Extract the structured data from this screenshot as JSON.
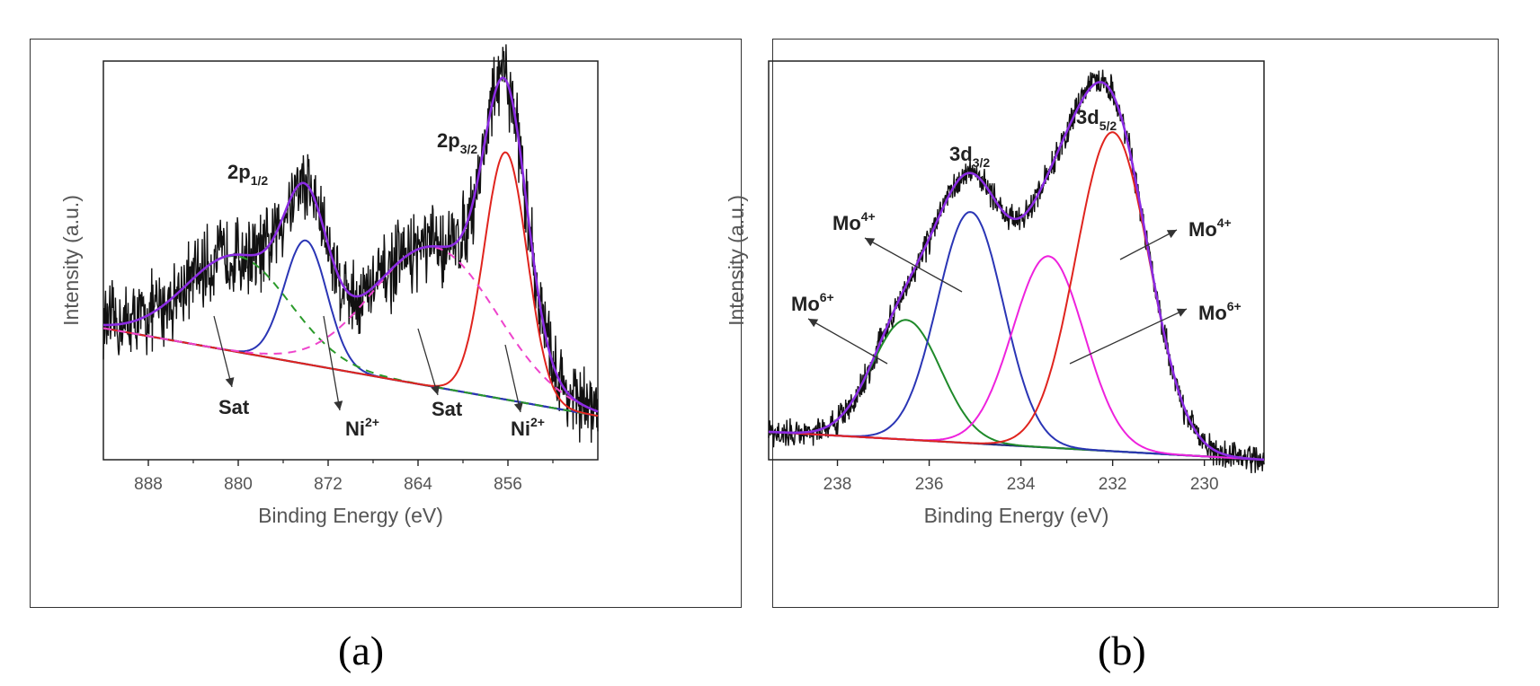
{
  "captions": {
    "a": "(a)",
    "b": "(b)"
  },
  "colors": {
    "raw": "#111111",
    "envelope": "#8a2be2",
    "background": "#1f2a7a",
    "blue": "#2a35b5",
    "red": "#e0241e",
    "magenta": "#ee22dd",
    "green": "#1f8a2a",
    "sat_magenta": "#ee44cc",
    "sat_green": "#2a9a2a"
  },
  "chart_data": [
    {
      "id": "a",
      "type": "line",
      "xlabel": "Binding Energy (eV)",
      "ylabel": "Intensity (a.u.)",
      "xlim": [
        892,
        848
      ],
      "ylim": [
        0,
        1
      ],
      "xticks": [
        888,
        880,
        872,
        864,
        856
      ],
      "xtick_labels": [
        "888",
        "880",
        "872",
        "864",
        "856"
      ],
      "background": {
        "start": [
          892,
          0.33
        ],
        "end": [
          848,
          0.11
        ]
      },
      "peaks": [
        {
          "name": "Ni2+ 2p1/2",
          "center": 874.0,
          "height": 0.31,
          "width": 1.9,
          "color": "blue"
        },
        {
          "name": "Sat 2p1/2",
          "center": 880.0,
          "height": 0.24,
          "width": 4.6,
          "color": "sat_green",
          "dashed": true
        },
        {
          "name": "Ni2+ 2p3/2",
          "center": 856.2,
          "height": 0.62,
          "width": 1.9,
          "color": "red"
        },
        {
          "name": "Sat 2p3/2",
          "center": 862.5,
          "height": 0.35,
          "width": 5.5,
          "color": "sat_magenta",
          "dashed": true
        }
      ],
      "annotations": [
        {
          "text": "2p",
          "sub": "1/2"
        },
        {
          "text": "2p",
          "sub": "3/2"
        },
        {
          "text": "Sat"
        },
        {
          "text": "Ni",
          "sup": "2+"
        },
        {
          "text": "Sat"
        },
        {
          "text": "Ni",
          "sup": "2+"
        }
      ]
    },
    {
      "id": "b",
      "type": "line",
      "xlabel": "Binding Energy (eV)",
      "ylabel": "Intensity (a.u.)",
      "xlim": [
        239.5,
        228.7
      ],
      "ylim": [
        0,
        1
      ],
      "xticks": [
        238,
        236,
        234,
        232,
        230
      ],
      "xtick_labels": [
        "238",
        "236",
        "234",
        "232",
        "230"
      ],
      "background": {
        "start": [
          239.5,
          0.07
        ],
        "end": [
          228.7,
          0.0
        ]
      },
      "peaks": [
        {
          "name": "Mo6+ 3d3/2",
          "center": 236.5,
          "height": 0.3,
          "width": 0.75,
          "color": "green"
        },
        {
          "name": "Mo4+ 3d3/2",
          "center": 235.1,
          "height": 0.58,
          "width": 0.72,
          "color": "blue"
        },
        {
          "name": "Mo6+ 3d5/2",
          "center": 233.4,
          "height": 0.48,
          "width": 0.78,
          "color": "magenta"
        },
        {
          "name": "Mo4+ 3d5/2",
          "center": 232.0,
          "height": 0.8,
          "width": 0.8,
          "color": "red"
        }
      ],
      "annotations": [
        {
          "text": "3d",
          "sub": "3/2"
        },
        {
          "text": "3d",
          "sub": "5/2"
        },
        {
          "text": "Mo",
          "sup": "4+"
        },
        {
          "text": "Mo",
          "sup": "6+"
        },
        {
          "text": "Mo",
          "sup": "4+"
        },
        {
          "text": "Mo",
          "sup": "6+"
        }
      ]
    }
  ]
}
